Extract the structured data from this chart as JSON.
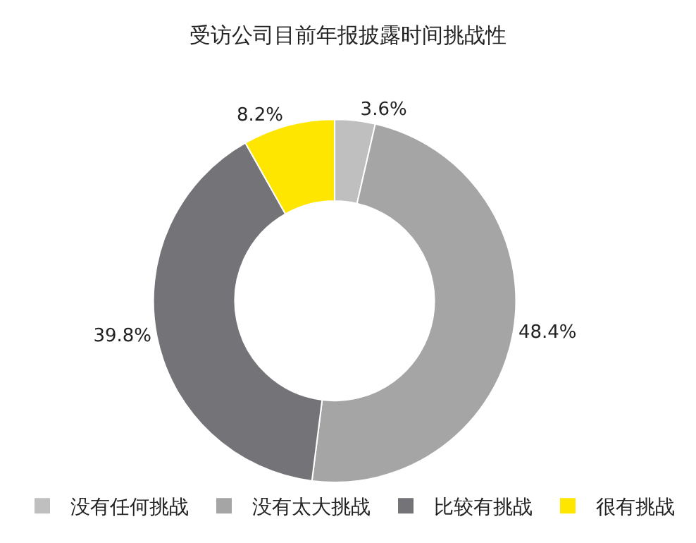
{
  "chart_data": {
    "type": "donut",
    "title": "受访公司目前年报披露时间挑战性",
    "categories": [
      "没有任何挑战",
      "没有太大挑战",
      "比较有挑战",
      "很有挑战"
    ],
    "values": [
      3.6,
      48.4,
      39.8,
      8.2
    ],
    "value_labels": [
      "3.6%",
      "48.4%",
      "39.8%",
      "8.2%"
    ],
    "colors": [
      "#bfbfbf",
      "#a5a5a5",
      "#747478",
      "#ffe600"
    ],
    "legend": "bottom"
  }
}
